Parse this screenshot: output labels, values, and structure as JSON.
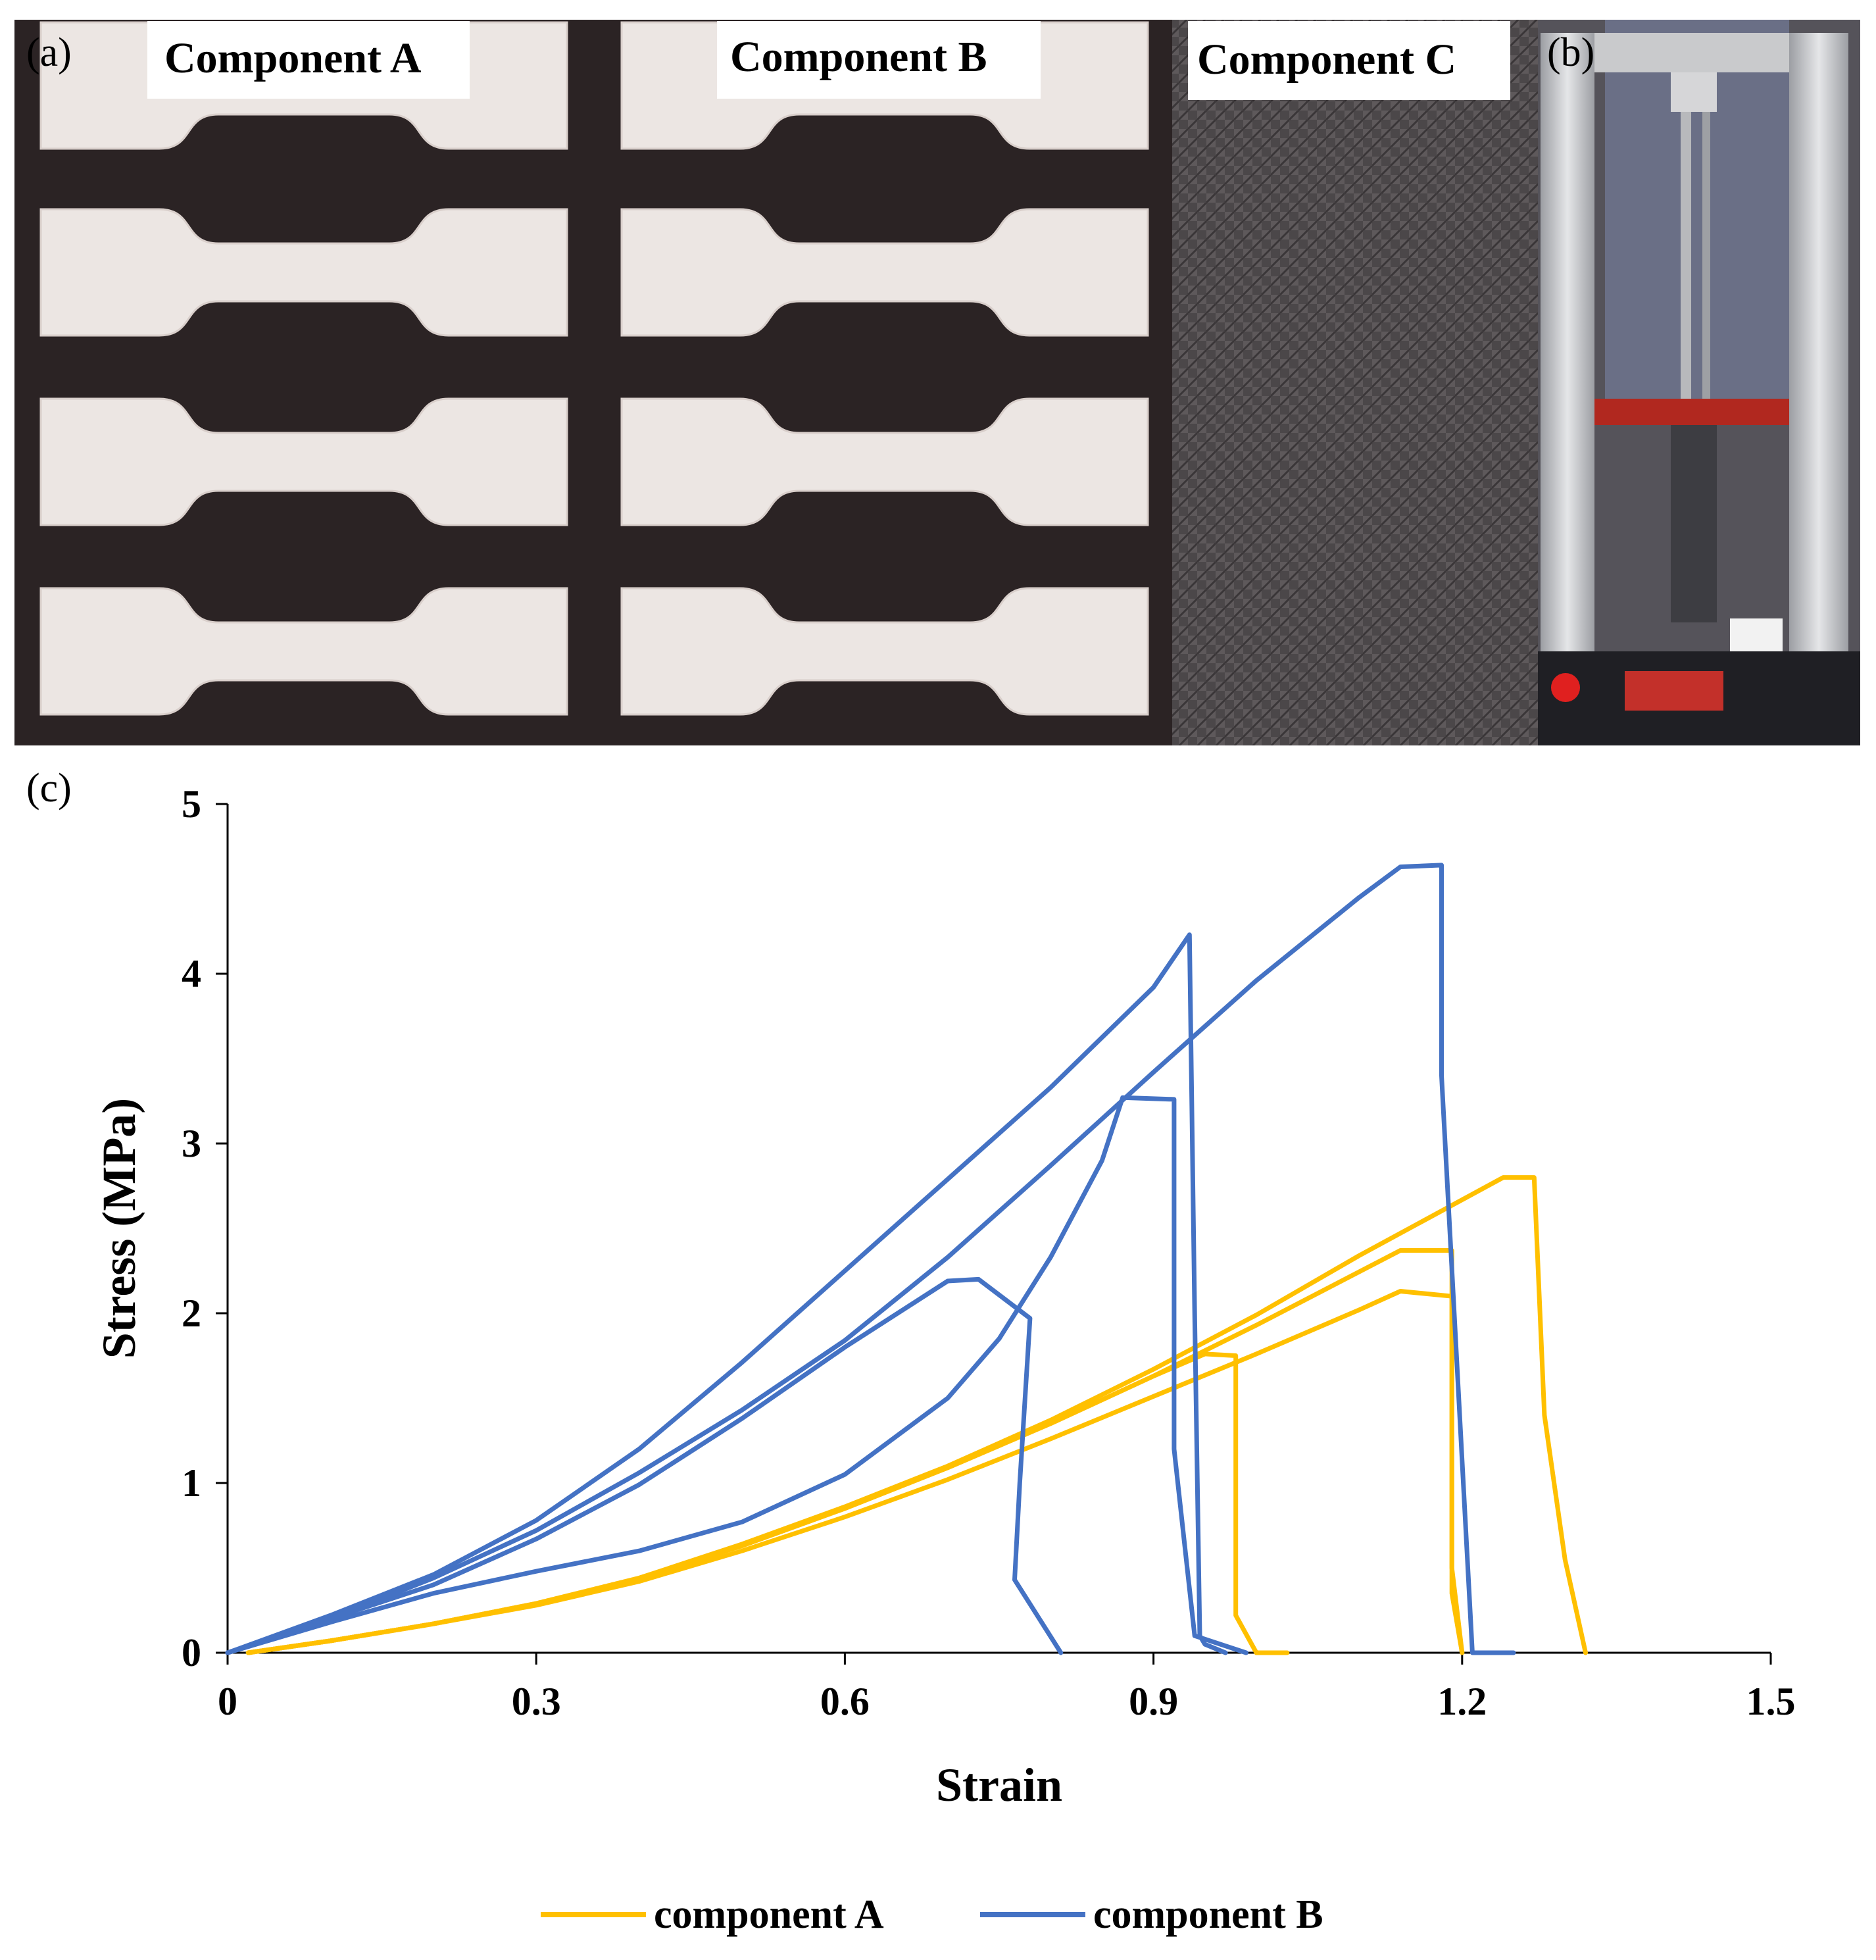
{
  "photo_panels": {
    "panel_a": {
      "letter": "(a)"
    },
    "panel_b": {
      "letter": "(b)"
    },
    "component_labels": [
      "Component A",
      "Component B",
      "Component C"
    ]
  },
  "chart_data": {
    "type": "line",
    "panel_letter": "(c)",
    "title": "",
    "xlabel": "Strain",
    "ylabel": "Stress (MPa)",
    "xlim": [
      0,
      1.5
    ],
    "ylim": [
      0,
      5
    ],
    "xticks": [
      0,
      0.3,
      0.6,
      0.9,
      1.2,
      1.5
    ],
    "xtick_labels": [
      "0",
      "0.3",
      "0.6",
      "0.9",
      "1.2",
      "1.5"
    ],
    "yticks": [
      0,
      1,
      2,
      3,
      4,
      5
    ],
    "ytick_labels": [
      "0",
      "1",
      "2",
      "3",
      "4",
      "5"
    ],
    "grid": false,
    "legend_placement": "bottom",
    "legend": [
      {
        "label": "component A",
        "color": "#FFC000"
      },
      {
        "label": "component B",
        "color": "#4472C4"
      }
    ],
    "series": [
      {
        "group": "component A",
        "color": "#FFC000",
        "x": [
          0.02,
          0.1,
          0.2,
          0.3,
          0.4,
          0.5,
          0.6,
          0.7,
          0.8,
          0.9,
          1.0,
          1.1,
          1.24,
          1.27,
          1.28,
          1.3,
          1.32
        ],
        "y": [
          0,
          0.07,
          0.17,
          0.29,
          0.44,
          0.64,
          0.86,
          1.1,
          1.37,
          1.67,
          1.99,
          2.34,
          2.8,
          2.8,
          1.4,
          0.55,
          0
        ]
      },
      {
        "group": "component A",
        "color": "#FFC000",
        "x": [
          0.02,
          0.1,
          0.2,
          0.3,
          0.4,
          0.5,
          0.6,
          0.7,
          0.8,
          0.9,
          1.0,
          1.1,
          1.14,
          1.19,
          1.19,
          1.2
        ],
        "y": [
          0,
          0.07,
          0.17,
          0.28,
          0.42,
          0.6,
          0.8,
          1.02,
          1.26,
          1.51,
          1.76,
          2.02,
          2.13,
          2.1,
          0.35,
          0
        ]
      },
      {
        "group": "component A",
        "color": "#FFC000",
        "x": [
          0.02,
          0.1,
          0.2,
          0.3,
          0.4,
          0.5,
          0.6,
          0.7,
          0.8,
          0.9,
          1.0,
          1.14,
          1.19,
          1.19,
          1.2
        ],
        "y": [
          0,
          0.07,
          0.17,
          0.29,
          0.44,
          0.63,
          0.85,
          1.09,
          1.35,
          1.63,
          1.93,
          2.37,
          2.37,
          0.5,
          0
        ]
      },
      {
        "group": "component A",
        "color": "#FFC000",
        "x": [
          0.02,
          0.1,
          0.2,
          0.3,
          0.4,
          0.5,
          0.6,
          0.7,
          0.8,
          0.9,
          0.95,
          0.98,
          0.98,
          1.0,
          1.03
        ],
        "y": [
          0,
          0.07,
          0.17,
          0.29,
          0.44,
          0.63,
          0.85,
          1.09,
          1.35,
          1.63,
          1.76,
          1.75,
          0.22,
          0,
          0
        ]
      },
      {
        "group": "component B",
        "color": "#4472C4",
        "x": [
          0,
          0.1,
          0.2,
          0.3,
          0.4,
          0.5,
          0.6,
          0.7,
          0.8,
          0.9,
          0.935,
          0.94,
          0.945,
          0.95,
          0.97
        ],
        "y": [
          0,
          0.22,
          0.46,
          0.78,
          1.2,
          1.71,
          2.25,
          2.79,
          3.33,
          3.92,
          4.23,
          2.0,
          0.1,
          0.05,
          0
        ]
      },
      {
        "group": "component B",
        "color": "#4472C4",
        "x": [
          0,
          0.1,
          0.2,
          0.3,
          0.4,
          0.5,
          0.6,
          0.7,
          0.8,
          0.9,
          1.0,
          1.1,
          1.14,
          1.18,
          1.18,
          1.21,
          1.25
        ],
        "y": [
          0,
          0.2,
          0.44,
          0.72,
          1.06,
          1.43,
          1.84,
          2.33,
          2.87,
          3.42,
          3.96,
          4.45,
          4.63,
          4.64,
          3.4,
          0,
          0
        ]
      },
      {
        "group": "component B",
        "color": "#4472C4",
        "x": [
          0,
          0.1,
          0.2,
          0.3,
          0.4,
          0.5,
          0.6,
          0.7,
          0.75,
          0.8,
          0.85,
          0.87,
          0.92,
          0.92,
          0.94,
          0.99
        ],
        "y": [
          0,
          0.18,
          0.35,
          0.48,
          0.6,
          0.77,
          1.05,
          1.5,
          1.85,
          2.33,
          2.9,
          3.27,
          3.26,
          1.2,
          0.1,
          0
        ]
      },
      {
        "group": "component B",
        "color": "#4472C4",
        "x": [
          0,
          0.1,
          0.2,
          0.3,
          0.4,
          0.5,
          0.6,
          0.7,
          0.73,
          0.78,
          0.77,
          0.765,
          0.81
        ],
        "y": [
          0,
          0.2,
          0.4,
          0.67,
          0.99,
          1.38,
          1.8,
          2.19,
          2.2,
          1.97,
          1.0,
          0.43,
          0
        ]
      }
    ]
  }
}
